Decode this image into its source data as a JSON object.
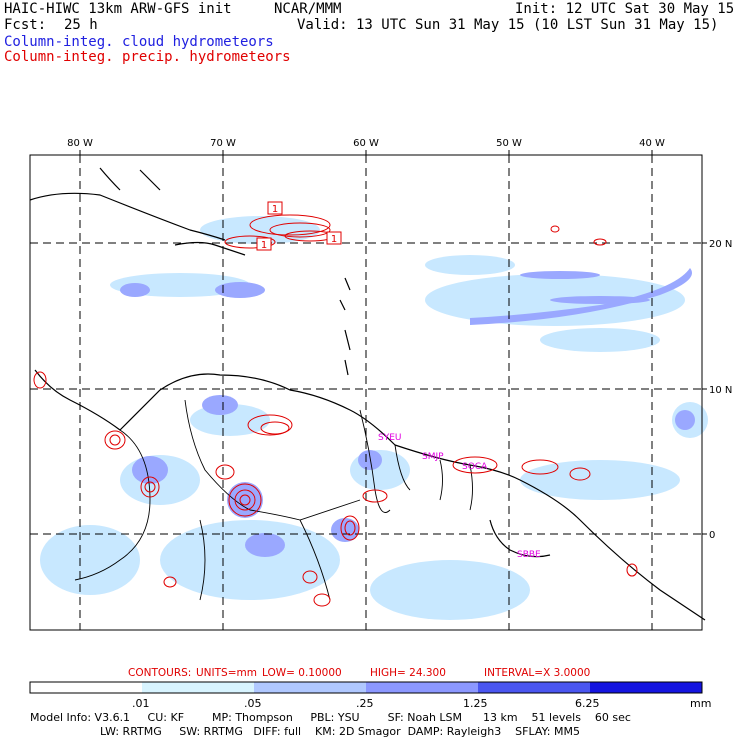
{
  "header": {
    "model_title": "HAIC-HIWC 13km ARW-GFS init",
    "org": "NCAR/MMM",
    "init": "Init: 12 UTC Sat 30 May 15",
    "fcst_label": "Fcst:",
    "fcst_value": "25 h",
    "valid": "Valid: 13 UTC Sun 31 May 15 (10 LST Sun 31 May 15)",
    "field_cloud": "Column-integ. cloud hydrometeors",
    "field_precip": "Column-integ. precip. hydrometeors"
  },
  "map": {
    "lon_labels": [
      "80 W",
      "70 W",
      "60 W",
      "50 W",
      "40 W"
    ],
    "lat_labels": [
      "20 N",
      "10 N",
      "0"
    ],
    "stations": [
      "SYEU",
      "SMJP",
      "SOCA",
      "SBBE"
    ],
    "contour_labels": [
      "1",
      "1",
      "1"
    ],
    "colors": {
      "cloud": "#9aa8ff",
      "cloud_light": "#c8e8ff",
      "precip": "#e00000",
      "station": "#e000e0"
    }
  },
  "contours_info": {
    "label": "CONTOURS:",
    "units": "UNITS=mm",
    "low": "LOW= 0.10000",
    "high": "HIGH= 24.300",
    "interval": "INTERVAL=X 3.0000"
  },
  "colorbar": {
    "ticks": [
      ".01",
      ".05",
      ".25",
      "1.25",
      "6.25"
    ],
    "units": "mm",
    "colors": [
      "#ffffff",
      "#d8f4ff",
      "#b0c8ff",
      "#8c98ff",
      "#5a62f0",
      "#3030e0",
      "#1010e0"
    ]
  },
  "footer": {
    "line1": "Model Info: V3.6.1     CU: KF        MP: Thompson     PBL: YSU        SF: Noah LSM      13 km    51 levels    60 sec",
    "line2": "LW: RRTMG     SW: RRTMG   DIFF: full    KM: 2D Smagor  DAMP: Rayleigh3    SFLAY: MM5"
  }
}
